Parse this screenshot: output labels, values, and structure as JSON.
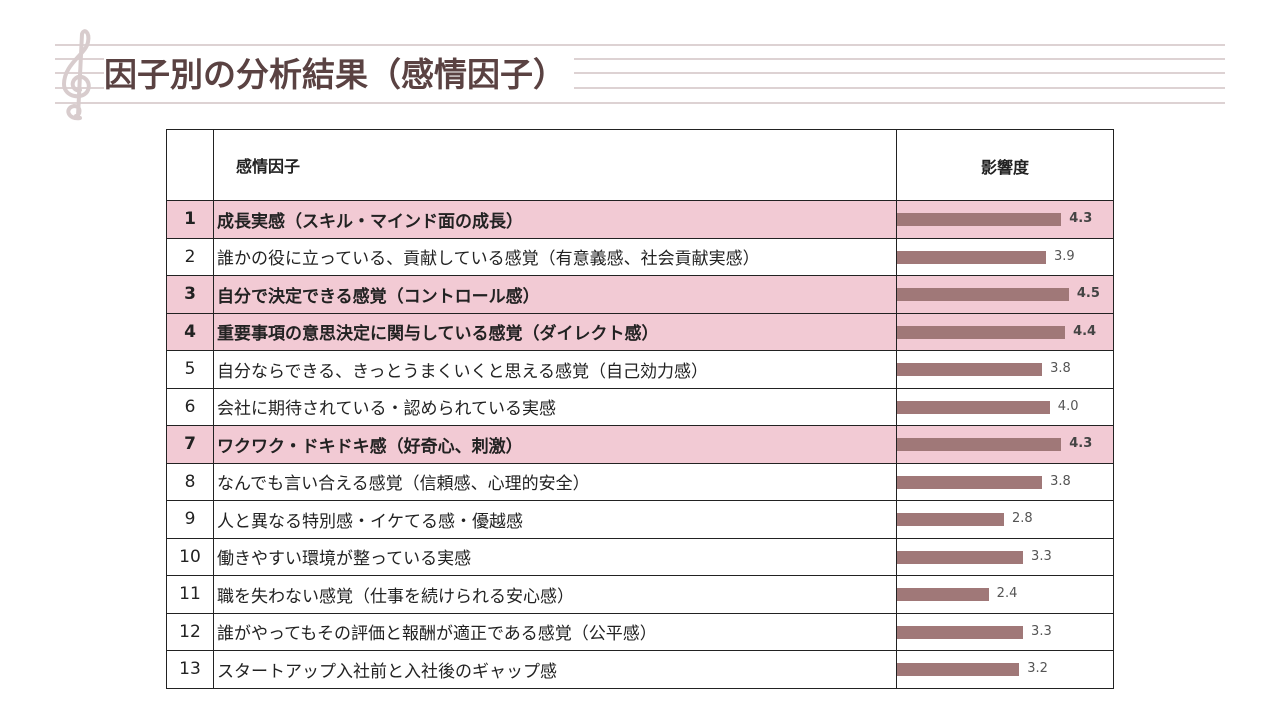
{
  "header": {
    "title": "因子別の分析結果（感情因子）"
  },
  "table": {
    "columns": [
      "感情因子",
      "影響度"
    ],
    "bar_color": "#a07878",
    "highlight_color": "#f2cad4",
    "rows": [
      {
        "number": "1",
        "label": "成長実感（スキル・マインド面の成長）",
        "value": 4.3,
        "value_label": "4.3",
        "highlight": true
      },
      {
        "number": "2",
        "label": "誰かの役に立っている、貢献している感覚（有意義感、社会貢献実感）",
        "value": 3.9,
        "value_label": "3.9",
        "highlight": false
      },
      {
        "number": "3",
        "label": "自分で決定できる感覚（コントロール感）",
        "value": 4.5,
        "value_label": "4.5",
        "highlight": true
      },
      {
        "number": "4",
        "label": "重要事項の意思決定に関与している感覚（ダイレクト感）",
        "value": 4.4,
        "value_label": "4.4",
        "highlight": true
      },
      {
        "number": "5",
        "label": "自分ならできる、きっとうまくいくと思える感覚（自己効力感）",
        "value": 3.8,
        "value_label": "3.8",
        "highlight": false
      },
      {
        "number": "6",
        "label": "会社に期待されている・認められている実感",
        "value": 4.0,
        "value_label": "4.0",
        "highlight": false
      },
      {
        "number": "7",
        "label": "ワクワク・ドキドキ感（好奇心、刺激）",
        "value": 4.3,
        "value_label": "4.3",
        "highlight": true
      },
      {
        "number": "8",
        "label": "なんでも言い合える感覚（信頼感、心理的安全）",
        "value": 3.8,
        "value_label": "3.8",
        "highlight": false
      },
      {
        "number": "9",
        "label": "人と異なる特別感・イケてる感・優越感",
        "value": 2.8,
        "value_label": "2.8",
        "highlight": false
      },
      {
        "number": "10",
        "label": "働きやすい環境が整っている実感",
        "value": 3.3,
        "value_label": "3.3",
        "highlight": false
      },
      {
        "number": "11",
        "label": "職を失わない感覚（仕事を続けられる安心感）",
        "value": 2.4,
        "value_label": "2.4",
        "highlight": false
      },
      {
        "number": "12",
        "label": "誰がやってもその評価と報酬が適正である感覚（公平感）",
        "value": 3.3,
        "value_label": "3.3",
        "highlight": false
      },
      {
        "number": "13",
        "label": "スタートアップ入社前と入社後のギャップ感",
        "value": 3.2,
        "value_label": "3.2",
        "highlight": false
      }
    ]
  }
}
